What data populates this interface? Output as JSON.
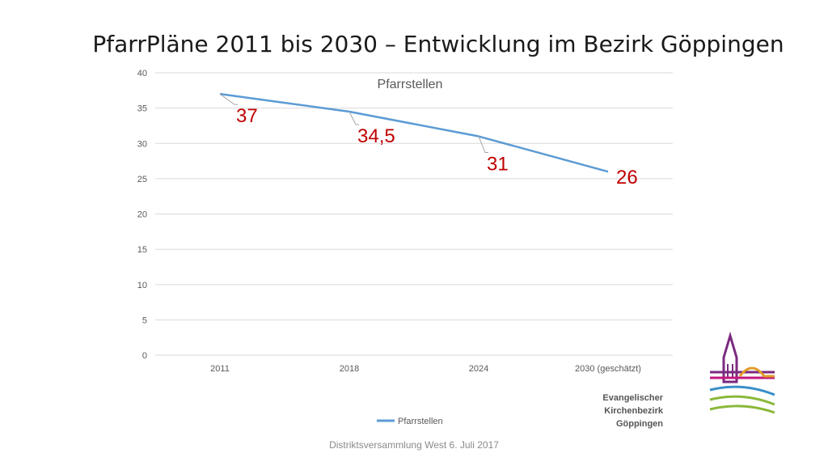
{
  "slide": {
    "title": "PfarrPläne 2011 bis 2030 – Entwicklung im Bezirk Göppingen",
    "footer": "Distriktsversammlung West 6. Juli 2017"
  },
  "logo": {
    "lines": [
      "Evangelischer",
      "Kirchenbezirk",
      "Göppingen"
    ],
    "colors": [
      "#7b2a7f",
      "#c0197c",
      "#e39a2a",
      "#3a8fc8",
      "#8ab83a"
    ]
  },
  "chart_data": {
    "type": "line",
    "title": "Pfarrstellen",
    "categories": [
      "2011",
      "2018",
      "2024",
      "2030 (geschätzt)"
    ],
    "series": [
      {
        "name": "Pfarrstellen",
        "values": [
          37,
          34.5,
          31,
          26
        ],
        "labels": [
          "37",
          "34,5",
          "31",
          "26"
        ],
        "color": "#5b9bd5"
      }
    ],
    "ylim": [
      0,
      40
    ],
    "yticks": [
      0,
      5,
      10,
      15,
      20,
      25,
      30,
      35,
      40
    ],
    "grid": true,
    "legend": "bottom",
    "label_color": "#c00000"
  }
}
